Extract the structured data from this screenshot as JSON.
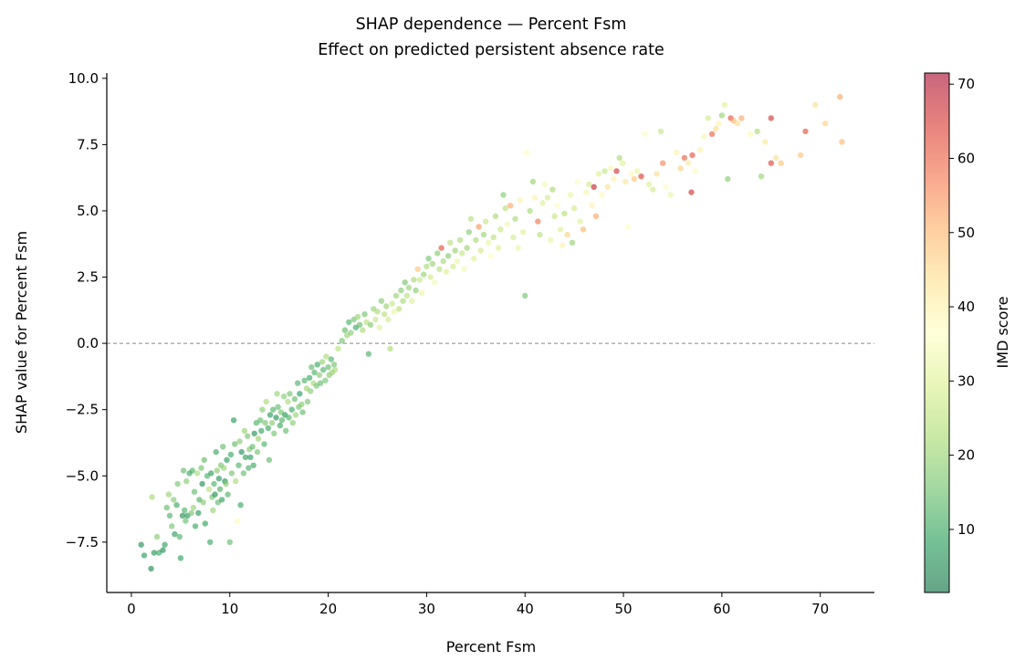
{
  "chart_data": {
    "type": "scatter",
    "title": "SHAP dependence — Percent Fsm",
    "subtitle": "Effect on predicted persistent absence rate",
    "xlabel": "Percent Fsm",
    "ylabel": "SHAP value for Percent Fsm",
    "xlim": [
      -2.5,
      75.5
    ],
    "ylim": [
      -9.4,
      10.2
    ],
    "xticks": [
      0,
      10,
      20,
      30,
      40,
      50,
      60,
      70
    ],
    "yticks": [
      -7.5,
      -5.0,
      -2.5,
      0.0,
      2.5,
      5.0,
      7.5,
      10.0
    ],
    "x_tick_labels": [
      "0",
      "10",
      "20",
      "30",
      "40",
      "50",
      "60",
      "70"
    ],
    "y_tick_labels": [
      "−7.5",
      "−5.0",
      "−2.5",
      "0.0",
      "2.5",
      "5.0",
      "7.5",
      "10.0"
    ],
    "reference_line": {
      "y": 0,
      "style": "dashed",
      "color": "#888888"
    },
    "grid": false,
    "colorbar": {
      "label": "IMD score",
      "range": [
        1.5,
        71.5
      ],
      "ticks": [
        10,
        20,
        30,
        40,
        50,
        60,
        70
      ],
      "tick_labels": [
        "10",
        "20",
        "30",
        "40",
        "50",
        "60",
        "70"
      ],
      "colormap": "RdYlGn_r",
      "colormap_stops": [
        "#006837",
        "#1a9850",
        "#66bd63",
        "#a6d96a",
        "#d9ef8b",
        "#ffffbf",
        "#fee08b",
        "#fdae61",
        "#f46d43",
        "#d73027",
        "#a50026"
      ]
    },
    "points": [
      [
        1,
        -7.6,
        6
      ],
      [
        1.3,
        -8.0,
        8
      ],
      [
        2,
        -8.5,
        5
      ],
      [
        2.1,
        -5.8,
        22
      ],
      [
        2.3,
        -7.9,
        7
      ],
      [
        2.6,
        -7.3,
        18
      ],
      [
        2.8,
        -7.9,
        10
      ],
      [
        3.2,
        -7.8,
        6
      ],
      [
        3.4,
        -7.6,
        9
      ],
      [
        3.6,
        -6.2,
        14
      ],
      [
        3.8,
        -5.7,
        20
      ],
      [
        3.9,
        -6.5,
        12
      ],
      [
        4.1,
        -6.9,
        16
      ],
      [
        4.3,
        -5.9,
        18
      ],
      [
        4.4,
        -7.2,
        8
      ],
      [
        4.6,
        -6.1,
        10
      ],
      [
        4.7,
        -5.3,
        16
      ],
      [
        4.9,
        -7.3,
        12
      ],
      [
        5.0,
        -8.1,
        9
      ],
      [
        5.2,
        -6.5,
        6
      ],
      [
        5.3,
        -4.8,
        14
      ],
      [
        5.4,
        -6.3,
        12
      ],
      [
        5.5,
        -6.7,
        15
      ],
      [
        5.6,
        -5.2,
        18
      ],
      [
        5.7,
        -6.5,
        8
      ],
      [
        5.9,
        -4.9,
        10
      ],
      [
        6.1,
        -6.4,
        16
      ],
      [
        6.2,
        -4.8,
        12
      ],
      [
        6.3,
        -6.2,
        20
      ],
      [
        6.4,
        -5.6,
        14
      ],
      [
        6.5,
        -6.9,
        10
      ],
      [
        6.7,
        -4.9,
        22
      ],
      [
        6.8,
        -6.4,
        7
      ],
      [
        6.9,
        -5.9,
        12
      ],
      [
        7.1,
        -4.7,
        16
      ],
      [
        7.2,
        -5.3,
        6
      ],
      [
        7.3,
        -6.0,
        18
      ],
      [
        7.4,
        -4.4,
        14
      ],
      [
        7.5,
        -6.8,
        9
      ],
      [
        7.7,
        -5.0,
        12
      ],
      [
        7.9,
        -5.5,
        24
      ],
      [
        8.0,
        -7.5,
        10
      ],
      [
        8.1,
        -4.9,
        8
      ],
      [
        8.2,
        -5.8,
        16
      ],
      [
        8.3,
        -6.3,
        20
      ],
      [
        8.4,
        -5.3,
        12
      ],
      [
        8.5,
        -5.7,
        6
      ],
      [
        8.6,
        -4.1,
        10
      ],
      [
        8.7,
        -4.8,
        18
      ],
      [
        8.8,
        -6.0,
        14
      ],
      [
        8.9,
        -5.1,
        7
      ],
      [
        9.0,
        -5.5,
        12
      ],
      [
        9.1,
        -4.6,
        16
      ],
      [
        9.2,
        -5.9,
        9
      ],
      [
        9.3,
        -3.9,
        14
      ],
      [
        9.4,
        -4.7,
        20
      ],
      [
        9.5,
        -5.2,
        6
      ],
      [
        9.6,
        -5.3,
        18
      ],
      [
        9.7,
        -4.4,
        8
      ],
      [
        9.8,
        -5.7,
        12
      ],
      [
        10.0,
        -7.5,
        14
      ],
      [
        10.1,
        -4.2,
        10
      ],
      [
        10.2,
        -4.9,
        16
      ],
      [
        10.4,
        -2.9,
        8
      ],
      [
        10.5,
        -3.8,
        14
      ],
      [
        10.6,
        -5.2,
        22
      ],
      [
        10.8,
        -6.7,
        38
      ],
      [
        10.9,
        -4.6,
        12
      ],
      [
        11.0,
        -3.7,
        18
      ],
      [
        11.1,
        -6.1,
        10
      ],
      [
        11.2,
        -4.1,
        6
      ],
      [
        11.4,
        -4.9,
        14
      ],
      [
        11.5,
        -3.3,
        20
      ],
      [
        11.6,
        -4.3,
        9
      ],
      [
        11.8,
        -3.5,
        16
      ],
      [
        11.9,
        -4.7,
        12
      ],
      [
        12.0,
        -4.0,
        18
      ],
      [
        12.1,
        -4.3,
        8
      ],
      [
        12.3,
        -3.9,
        14
      ],
      [
        12.4,
        -4.6,
        10
      ],
      [
        12.5,
        -3.4,
        6
      ],
      [
        12.7,
        -3.0,
        12
      ],
      [
        12.8,
        -4.1,
        16
      ],
      [
        12.9,
        -3.6,
        20
      ],
      [
        13.1,
        -2.9,
        14
      ],
      [
        13.2,
        -3.3,
        9
      ],
      [
        13.3,
        -2.5,
        18
      ],
      [
        13.5,
        -3.8,
        12
      ],
      [
        13.6,
        -3.0,
        16
      ],
      [
        13.7,
        -2.2,
        22
      ],
      [
        13.9,
        -3.2,
        10
      ],
      [
        14.0,
        -4.4,
        14
      ],
      [
        14.1,
        -2.7,
        8
      ],
      [
        14.3,
        -3.0,
        18
      ],
      [
        14.4,
        -2.5,
        12
      ],
      [
        14.5,
        -3.4,
        16
      ],
      [
        14.7,
        -2.8,
        6
      ],
      [
        14.8,
        -1.9,
        20
      ],
      [
        14.9,
        -2.4,
        14
      ],
      [
        15.1,
        -3.1,
        10
      ],
      [
        15.2,
        -2.6,
        16
      ],
      [
        15.3,
        -2.9,
        12
      ],
      [
        15.5,
        -2.0,
        18
      ],
      [
        15.6,
        -2.7,
        8
      ],
      [
        15.7,
        -3.3,
        14
      ],
      [
        15.9,
        -2.2,
        22
      ],
      [
        16.0,
        -2.8,
        12
      ],
      [
        16.1,
        -1.9,
        16
      ],
      [
        16.3,
        -2.5,
        10
      ],
      [
        16.4,
        -3.0,
        18
      ],
      [
        16.6,
        -2.1,
        14
      ],
      [
        16.7,
        -2.7,
        20
      ],
      [
        16.9,
        -1.5,
        12
      ],
      [
        17.0,
        -2.4,
        16
      ],
      [
        17.1,
        -1.9,
        8
      ],
      [
        17.3,
        -2.3,
        18
      ],
      [
        17.4,
        -2.6,
        14
      ],
      [
        17.6,
        -1.4,
        12
      ],
      [
        17.8,
        -1.7,
        20
      ],
      [
        17.9,
        -2.2,
        16
      ],
      [
        18.1,
        -1.3,
        10
      ],
      [
        18.2,
        -1.8,
        18
      ],
      [
        18.3,
        -0.9,
        14
      ],
      [
        18.5,
        -1.5,
        22
      ],
      [
        18.6,
        -1.1,
        12
      ],
      [
        18.8,
        -1.6,
        16
      ],
      [
        18.9,
        -0.8,
        10
      ],
      [
        19.1,
        -1.2,
        18
      ],
      [
        19.2,
        -1.5,
        14
      ],
      [
        19.4,
        -0.7,
        20
      ],
      [
        19.5,
        -1.0,
        12
      ],
      [
        19.7,
        -1.4,
        16
      ],
      [
        19.8,
        -0.5,
        22
      ],
      [
        20.0,
        -0.9,
        14
      ],
      [
        20.1,
        -1.2,
        18
      ],
      [
        20.3,
        -0.6,
        12
      ],
      [
        20.4,
        -1.1,
        20
      ],
      [
        20.6,
        -0.8,
        16
      ],
      [
        20.7,
        -1.0,
        22
      ],
      [
        21.0,
        -0.2,
        24
      ],
      [
        21.4,
        0.1,
        16
      ],
      [
        21.7,
        0.5,
        14
      ],
      [
        21.9,
        0.3,
        20
      ],
      [
        22.1,
        0.8,
        12
      ],
      [
        22.3,
        0.4,
        18
      ],
      [
        22.6,
        0.9,
        16
      ],
      [
        22.8,
        0.6,
        10
      ],
      [
        23.0,
        1.0,
        20
      ],
      [
        23.2,
        0.7,
        14
      ],
      [
        23.5,
        0.5,
        22
      ],
      [
        23.7,
        1.1,
        16
      ],
      [
        23.9,
        0.8,
        24
      ],
      [
        24.1,
        -0.4,
        12
      ],
      [
        24.3,
        0.7,
        18
      ],
      [
        24.6,
        1.3,
        20
      ],
      [
        24.8,
        0.9,
        26
      ],
      [
        25.0,
        1.2,
        22
      ],
      [
        25.2,
        0.6,
        30
      ],
      [
        25.4,
        1.6,
        18
      ],
      [
        25.7,
        1.1,
        24
      ],
      [
        25.9,
        1.4,
        20
      ],
      [
        26.1,
        0.9,
        28
      ],
      [
        26.3,
        -0.2,
        22
      ],
      [
        26.5,
        1.5,
        26
      ],
      [
        26.7,
        1.2,
        32
      ],
      [
        26.9,
        1.8,
        20
      ],
      [
        27.2,
        1.3,
        24
      ],
      [
        27.4,
        2.0,
        18
      ],
      [
        27.6,
        1.6,
        22
      ],
      [
        27.8,
        2.3,
        16
      ],
      [
        28.0,
        1.8,
        24
      ],
      [
        28.2,
        2.1,
        20
      ],
      [
        28.5,
        1.6,
        30
      ],
      [
        28.7,
        2.4,
        22
      ],
      [
        28.9,
        2.0,
        18
      ],
      [
        29.1,
        2.8,
        48
      ],
      [
        29.3,
        2.4,
        26
      ],
      [
        29.5,
        1.9,
        32
      ],
      [
        29.7,
        2.6,
        20
      ],
      [
        30.0,
        2.9,
        22
      ],
      [
        30.2,
        3.2,
        16
      ],
      [
        30.4,
        2.5,
        28
      ],
      [
        30.6,
        3.0,
        20
      ],
      [
        30.8,
        2.3,
        34
      ],
      [
        31.1,
        3.4,
        18
      ],
      [
        31.3,
        2.8,
        24
      ],
      [
        31.5,
        3.6,
        62
      ],
      [
        31.7,
        3.1,
        22
      ],
      [
        32.0,
        2.7,
        30
      ],
      [
        32.2,
        3.3,
        18
      ],
      [
        32.4,
        3.8,
        24
      ],
      [
        32.7,
        2.9,
        28
      ],
      [
        32.9,
        3.5,
        20
      ],
      [
        33.1,
        3.1,
        32
      ],
      [
        33.4,
        3.9,
        22
      ],
      [
        33.6,
        3.4,
        26
      ],
      [
        33.8,
        2.8,
        34
      ],
      [
        34.1,
        3.6,
        20
      ],
      [
        34.3,
        4.2,
        18
      ],
      [
        34.5,
        4.7,
        24
      ],
      [
        34.8,
        3.2,
        30
      ],
      [
        35.0,
        3.9,
        22
      ],
      [
        35.3,
        4.4,
        54
      ],
      [
        35.5,
        3.5,
        28
      ],
      [
        35.8,
        4.1,
        20
      ],
      [
        36.0,
        4.6,
        26
      ],
      [
        36.3,
        3.8,
        32
      ],
      [
        36.5,
        3.3,
        36
      ],
      [
        36.8,
        4.0,
        24
      ],
      [
        37.0,
        4.8,
        22
      ],
      [
        37.3,
        3.6,
        30
      ],
      [
        37.5,
        4.3,
        26
      ],
      [
        37.8,
        5.6,
        18
      ],
      [
        38.0,
        5.1,
        24
      ],
      [
        38.2,
        4.5,
        34
      ],
      [
        38.5,
        5.2,
        52
      ],
      [
        38.8,
        4.0,
        28
      ],
      [
        39.0,
        4.7,
        22
      ],
      [
        39.3,
        3.6,
        32
      ],
      [
        39.5,
        5.4,
        40
      ],
      [
        39.8,
        4.2,
        30
      ],
      [
        40.0,
        1.8,
        16
      ],
      [
        40.2,
        7.2,
        36
      ],
      [
        40.5,
        5.0,
        22
      ],
      [
        40.8,
        6.1,
        20
      ],
      [
        41.0,
        5.5,
        40
      ],
      [
        41.3,
        4.6,
        58
      ],
      [
        41.5,
        4.1,
        24
      ],
      [
        41.8,
        5.3,
        30
      ],
      [
        42.0,
        6.0,
        34
      ],
      [
        42.3,
        5.5,
        28
      ],
      [
        42.6,
        3.9,
        32
      ],
      [
        42.8,
        5.8,
        22
      ],
      [
        43.0,
        4.8,
        26
      ],
      [
        43.3,
        5.2,
        36
      ],
      [
        43.6,
        4.3,
        30
      ],
      [
        43.8,
        3.7,
        40
      ],
      [
        44.0,
        4.9,
        24
      ],
      [
        44.3,
        4.1,
        46
      ],
      [
        44.6,
        5.6,
        32
      ],
      [
        44.8,
        3.8,
        20
      ],
      [
        45.0,
        5.1,
        28
      ],
      [
        45.3,
        6.1,
        36
      ],
      [
        45.6,
        4.6,
        30
      ],
      [
        45.9,
        4.3,
        50
      ],
      [
        46.2,
        5.7,
        34
      ],
      [
        46.5,
        6.0,
        28
      ],
      [
        46.8,
        5.2,
        40
      ],
      [
        47.0,
        5.9,
        68
      ],
      [
        47.2,
        4.8,
        52
      ],
      [
        47.5,
        6.4,
        30
      ],
      [
        47.8,
        5.6,
        38
      ],
      [
        48.1,
        6.5,
        26
      ],
      [
        48.4,
        5.9,
        44
      ],
      [
        48.7,
        6.6,
        34
      ],
      [
        49.0,
        6.2,
        40
      ],
      [
        49.3,
        6.5,
        66
      ],
      [
        49.6,
        7.0,
        22
      ],
      [
        49.9,
        6.8,
        30
      ],
      [
        50.2,
        6.1,
        42
      ],
      [
        50.5,
        4.4,
        36
      ],
      [
        50.8,
        6.4,
        38
      ],
      [
        51.1,
        6.2,
        48
      ],
      [
        51.4,
        6.5,
        32
      ],
      [
        51.8,
        6.3,
        64
      ],
      [
        52.2,
        7.9,
        36
      ],
      [
        52.6,
        6.0,
        30
      ],
      [
        53.0,
        5.8,
        28
      ],
      [
        53.4,
        6.4,
        44
      ],
      [
        53.8,
        8.0,
        26
      ],
      [
        54.0,
        6.8,
        56
      ],
      [
        54.3,
        5.9,
        36
      ],
      [
        54.8,
        5.6,
        32
      ],
      [
        55.4,
        7.2,
        40
      ],
      [
        55.8,
        6.6,
        46
      ],
      [
        56.2,
        7.0,
        60
      ],
      [
        56.6,
        6.8,
        42
      ],
      [
        57.0,
        7.1,
        62
      ],
      [
        56.9,
        5.7,
        66
      ],
      [
        57.3,
        6.5,
        38
      ],
      [
        57.8,
        7.3,
        40
      ],
      [
        58.2,
        7.8,
        34
      ],
      [
        58.6,
        8.5,
        28
      ],
      [
        59.0,
        7.9,
        60
      ],
      [
        59.4,
        8.1,
        44
      ],
      [
        59.7,
        8.3,
        40
      ],
      [
        60.0,
        8.6,
        20
      ],
      [
        60.3,
        9.0,
        30
      ],
      [
        60.6,
        6.2,
        18
      ],
      [
        60.9,
        8.5,
        62
      ],
      [
        61.2,
        8.4,
        50
      ],
      [
        61.6,
        8.3,
        44
      ],
      [
        62.0,
        8.5,
        52
      ],
      [
        62.9,
        7.9,
        38
      ],
      [
        63.6,
        8.0,
        22
      ],
      [
        64.0,
        6.3,
        20
      ],
      [
        64.4,
        7.6,
        42
      ],
      [
        65.0,
        8.5,
        66
      ],
      [
        65.0,
        6.8,
        64
      ],
      [
        65.5,
        7.0,
        44
      ],
      [
        66.0,
        6.8,
        48
      ],
      [
        68.0,
        7.1,
        48
      ],
      [
        68.5,
        8.0,
        62
      ],
      [
        69.5,
        9.0,
        44
      ],
      [
        70.5,
        8.3,
        46
      ],
      [
        72.0,
        9.3,
        52
      ],
      [
        72.2,
        7.6,
        50
      ]
    ]
  }
}
